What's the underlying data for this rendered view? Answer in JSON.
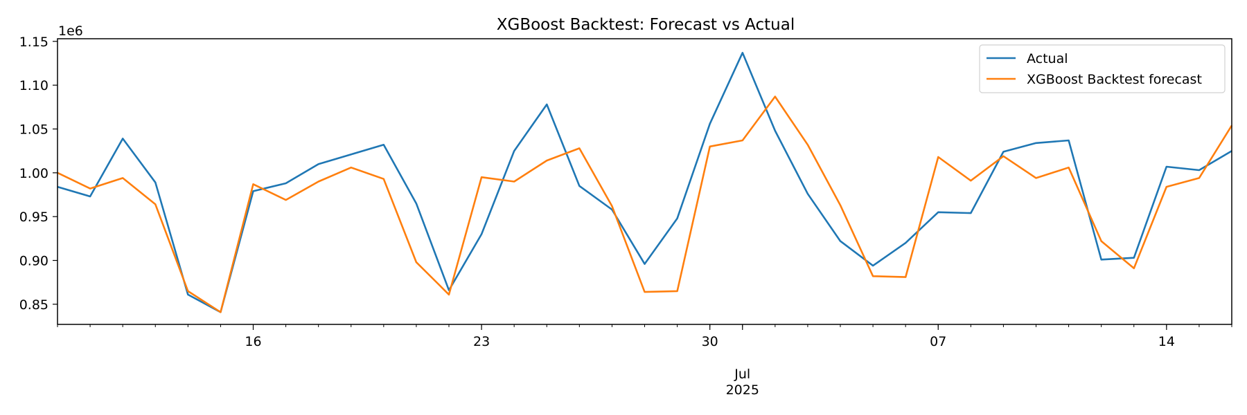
{
  "chart_data": {
    "type": "line",
    "title": "XGBoost Backtest: Forecast vs Actual",
    "xlabel": "",
    "ylabel": "",
    "y_offset_label": "1e6",
    "x": [
      "2025-06-10",
      "2025-06-11",
      "2025-06-12",
      "2025-06-13",
      "2025-06-14",
      "2025-06-15",
      "2025-06-16",
      "2025-06-17",
      "2025-06-18",
      "2025-06-19",
      "2025-06-20",
      "2025-06-21",
      "2025-06-22",
      "2025-06-23",
      "2025-06-24",
      "2025-06-25",
      "2025-06-26",
      "2025-06-27",
      "2025-06-28",
      "2025-06-29",
      "2025-06-30",
      "2025-07-01",
      "2025-07-02",
      "2025-07-03",
      "2025-07-04",
      "2025-07-05",
      "2025-07-06",
      "2025-07-07",
      "2025-07-08",
      "2025-07-09",
      "2025-07-10",
      "2025-07-11",
      "2025-07-12",
      "2025-07-13",
      "2025-07-14",
      "2025-07-15",
      "2025-07-16"
    ],
    "xlim": [
      "2025-06-10",
      "2025-07-16"
    ],
    "x_ticks": [
      {
        "date": "2025-06-16",
        "label": "16"
      },
      {
        "date": "2025-06-23",
        "label": "23"
      },
      {
        "date": "2025-06-30",
        "label": "30"
      },
      {
        "date": "2025-07-01",
        "label": "Jul",
        "sublabel": "2025"
      },
      {
        "date": "2025-07-07",
        "label": "07"
      },
      {
        "date": "2025-07-14",
        "label": "14"
      }
    ],
    "ylim": [
      0.827,
      1.153
    ],
    "y_ticks": [
      "0.85",
      "0.90",
      "0.95",
      "1.00",
      "1.05",
      "1.10",
      "1.15"
    ],
    "grid": false,
    "legend_position": "top-right",
    "series": [
      {
        "name": "Actual",
        "color": "#1f77b4",
        "values": [
          0.984,
          0.973,
          1.039,
          0.989,
          0.861,
          0.841,
          0.979,
          0.988,
          1.01,
          1.021,
          1.032,
          0.965,
          0.866,
          0.93,
          1.025,
          1.078,
          0.985,
          0.958,
          0.896,
          0.948,
          1.056,
          1.137,
          1.048,
          0.976,
          0.922,
          0.894,
          0.92,
          0.955,
          0.954,
          1.024,
          1.034,
          1.037,
          0.901,
          0.903,
          1.007,
          1.003,
          1.025
        ]
      },
      {
        "name": "XGBoost Backtest forecast",
        "color": "#ff7f0e",
        "values": [
          1.0,
          0.982,
          0.994,
          0.964,
          0.865,
          0.841,
          0.987,
          0.969,
          0.99,
          1.006,
          0.993,
          0.898,
          0.861,
          0.995,
          0.99,
          1.014,
          1.028,
          0.962,
          0.864,
          0.865,
          1.03,
          1.037,
          1.087,
          1.032,
          0.963,
          0.882,
          0.881,
          1.018,
          0.991,
          1.019,
          0.994,
          1.006,
          0.922,
          0.891,
          0.984,
          0.994,
          1.054
        ]
      }
    ]
  }
}
